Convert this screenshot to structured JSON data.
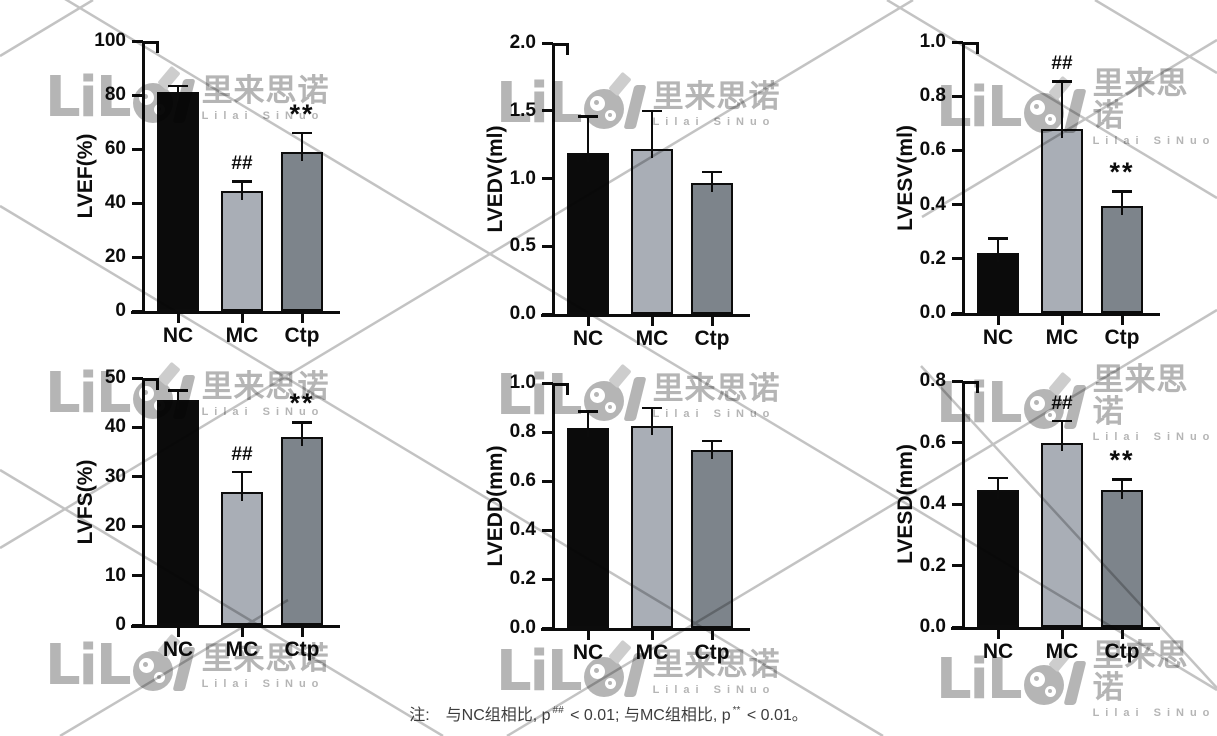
{
  "note": {
    "prefix": "注:",
    "seg1": "与NC组相比, p",
    "sup1": "##",
    "seg2": " < 0.01; 与MC组相比, p",
    "sup2": "**",
    "seg3": " < 0.01。"
  },
  "watermark": {
    "logo_letters": "LiL",
    "logo_tail": "l",
    "brand_cn": "里来思诺",
    "brand_en": "Lilai SiNuo",
    "color": "#b5b5b5"
  },
  "colors": {
    "bar_nc": "#0b0b0b",
    "bar_mc": "#a9aeb6",
    "bar_ctp": "#7d848b",
    "axis": "#0c0c0c",
    "watermark": "#b5b5b5",
    "watermark_line": "#c3c3c3"
  },
  "chart_data": [
    {
      "type": "bar",
      "ylabel": "LVEF(%)",
      "ylim": [
        0,
        100
      ],
      "yticks": [
        0,
        20,
        40,
        60,
        80,
        100
      ],
      "ytick_labels": [
        "0",
        "20",
        "40",
        "60",
        "80",
        "100"
      ],
      "categories": [
        "NC",
        "MC",
        "Ctp"
      ],
      "values": [
        81,
        44.5,
        59
      ],
      "errors": [
        2.5,
        3.5,
        7
      ],
      "annotations": [
        "",
        "##",
        "**"
      ],
      "legend": "none",
      "grid": false
    },
    {
      "type": "bar",
      "ylabel": "LVEDV(ml)",
      "ylim": [
        0,
        2.0
      ],
      "yticks": [
        0,
        0.5,
        1.0,
        1.5,
        2.0
      ],
      "ytick_labels": [
        "0.0",
        "0.5",
        "1.0",
        "1.5",
        "2.0"
      ],
      "categories": [
        "NC",
        "MC",
        "Ctp"
      ],
      "values": [
        1.19,
        1.22,
        0.97
      ],
      "errors": [
        0.27,
        0.28,
        0.08
      ],
      "annotations": [
        "",
        "",
        ""
      ],
      "legend": "none",
      "grid": false
    },
    {
      "type": "bar",
      "ylabel": "LVESV(ml)",
      "ylim": [
        0,
        1.0
      ],
      "yticks": [
        0,
        0.2,
        0.4,
        0.6,
        0.8,
        1.0
      ],
      "ytick_labels": [
        "0.0",
        "0.2",
        "0.4",
        "0.6",
        "0.8",
        "1.0"
      ],
      "categories": [
        "NC",
        "MC",
        "Ctp"
      ],
      "values": [
        0.22,
        0.68,
        0.395
      ],
      "errors": [
        0.055,
        0.175,
        0.055
      ],
      "annotations": [
        "",
        "##",
        "**"
      ],
      "legend": "none",
      "grid": false
    },
    {
      "type": "bar",
      "ylabel": "LVFS(%)",
      "ylim": [
        0,
        50
      ],
      "yticks": [
        0,
        10,
        20,
        30,
        40,
        50
      ],
      "ytick_labels": [
        "0",
        "10",
        "20",
        "30",
        "40",
        "50"
      ],
      "categories": [
        "NC",
        "MC",
        "Ctp"
      ],
      "values": [
        45.5,
        27,
        38
      ],
      "errors": [
        2,
        4,
        3
      ],
      "annotations": [
        "",
        "##",
        "**"
      ],
      "legend": "none",
      "grid": false
    },
    {
      "type": "bar",
      "ylabel": "LVEDD(mm)",
      "ylim": [
        0,
        1.0
      ],
      "yticks": [
        0,
        0.2,
        0.4,
        0.6,
        0.8,
        1.0
      ],
      "ytick_labels": [
        "0.0",
        "0.2",
        "0.4",
        "0.6",
        "0.8",
        "1.0"
      ],
      "categories": [
        "NC",
        "MC",
        "Ctp"
      ],
      "values": [
        0.815,
        0.825,
        0.725
      ],
      "errors": [
        0.07,
        0.075,
        0.04
      ],
      "annotations": [
        "",
        "",
        ""
      ],
      "legend": "none",
      "grid": false
    },
    {
      "type": "bar",
      "ylabel": "LVESD(mm)",
      "ylim": [
        0,
        0.8
      ],
      "yticks": [
        0,
        0.2,
        0.4,
        0.6,
        0.8
      ],
      "ytick_labels": [
        "0.0",
        "0.2",
        "0.4",
        "0.6",
        "0.8"
      ],
      "categories": [
        "NC",
        "MC",
        "Ctp"
      ],
      "values": [
        0.445,
        0.6,
        0.445
      ],
      "errors": [
        0.04,
        0.07,
        0.035
      ],
      "annotations": [
        "",
        "##",
        "**"
      ],
      "legend": "none",
      "grid": false
    }
  ]
}
